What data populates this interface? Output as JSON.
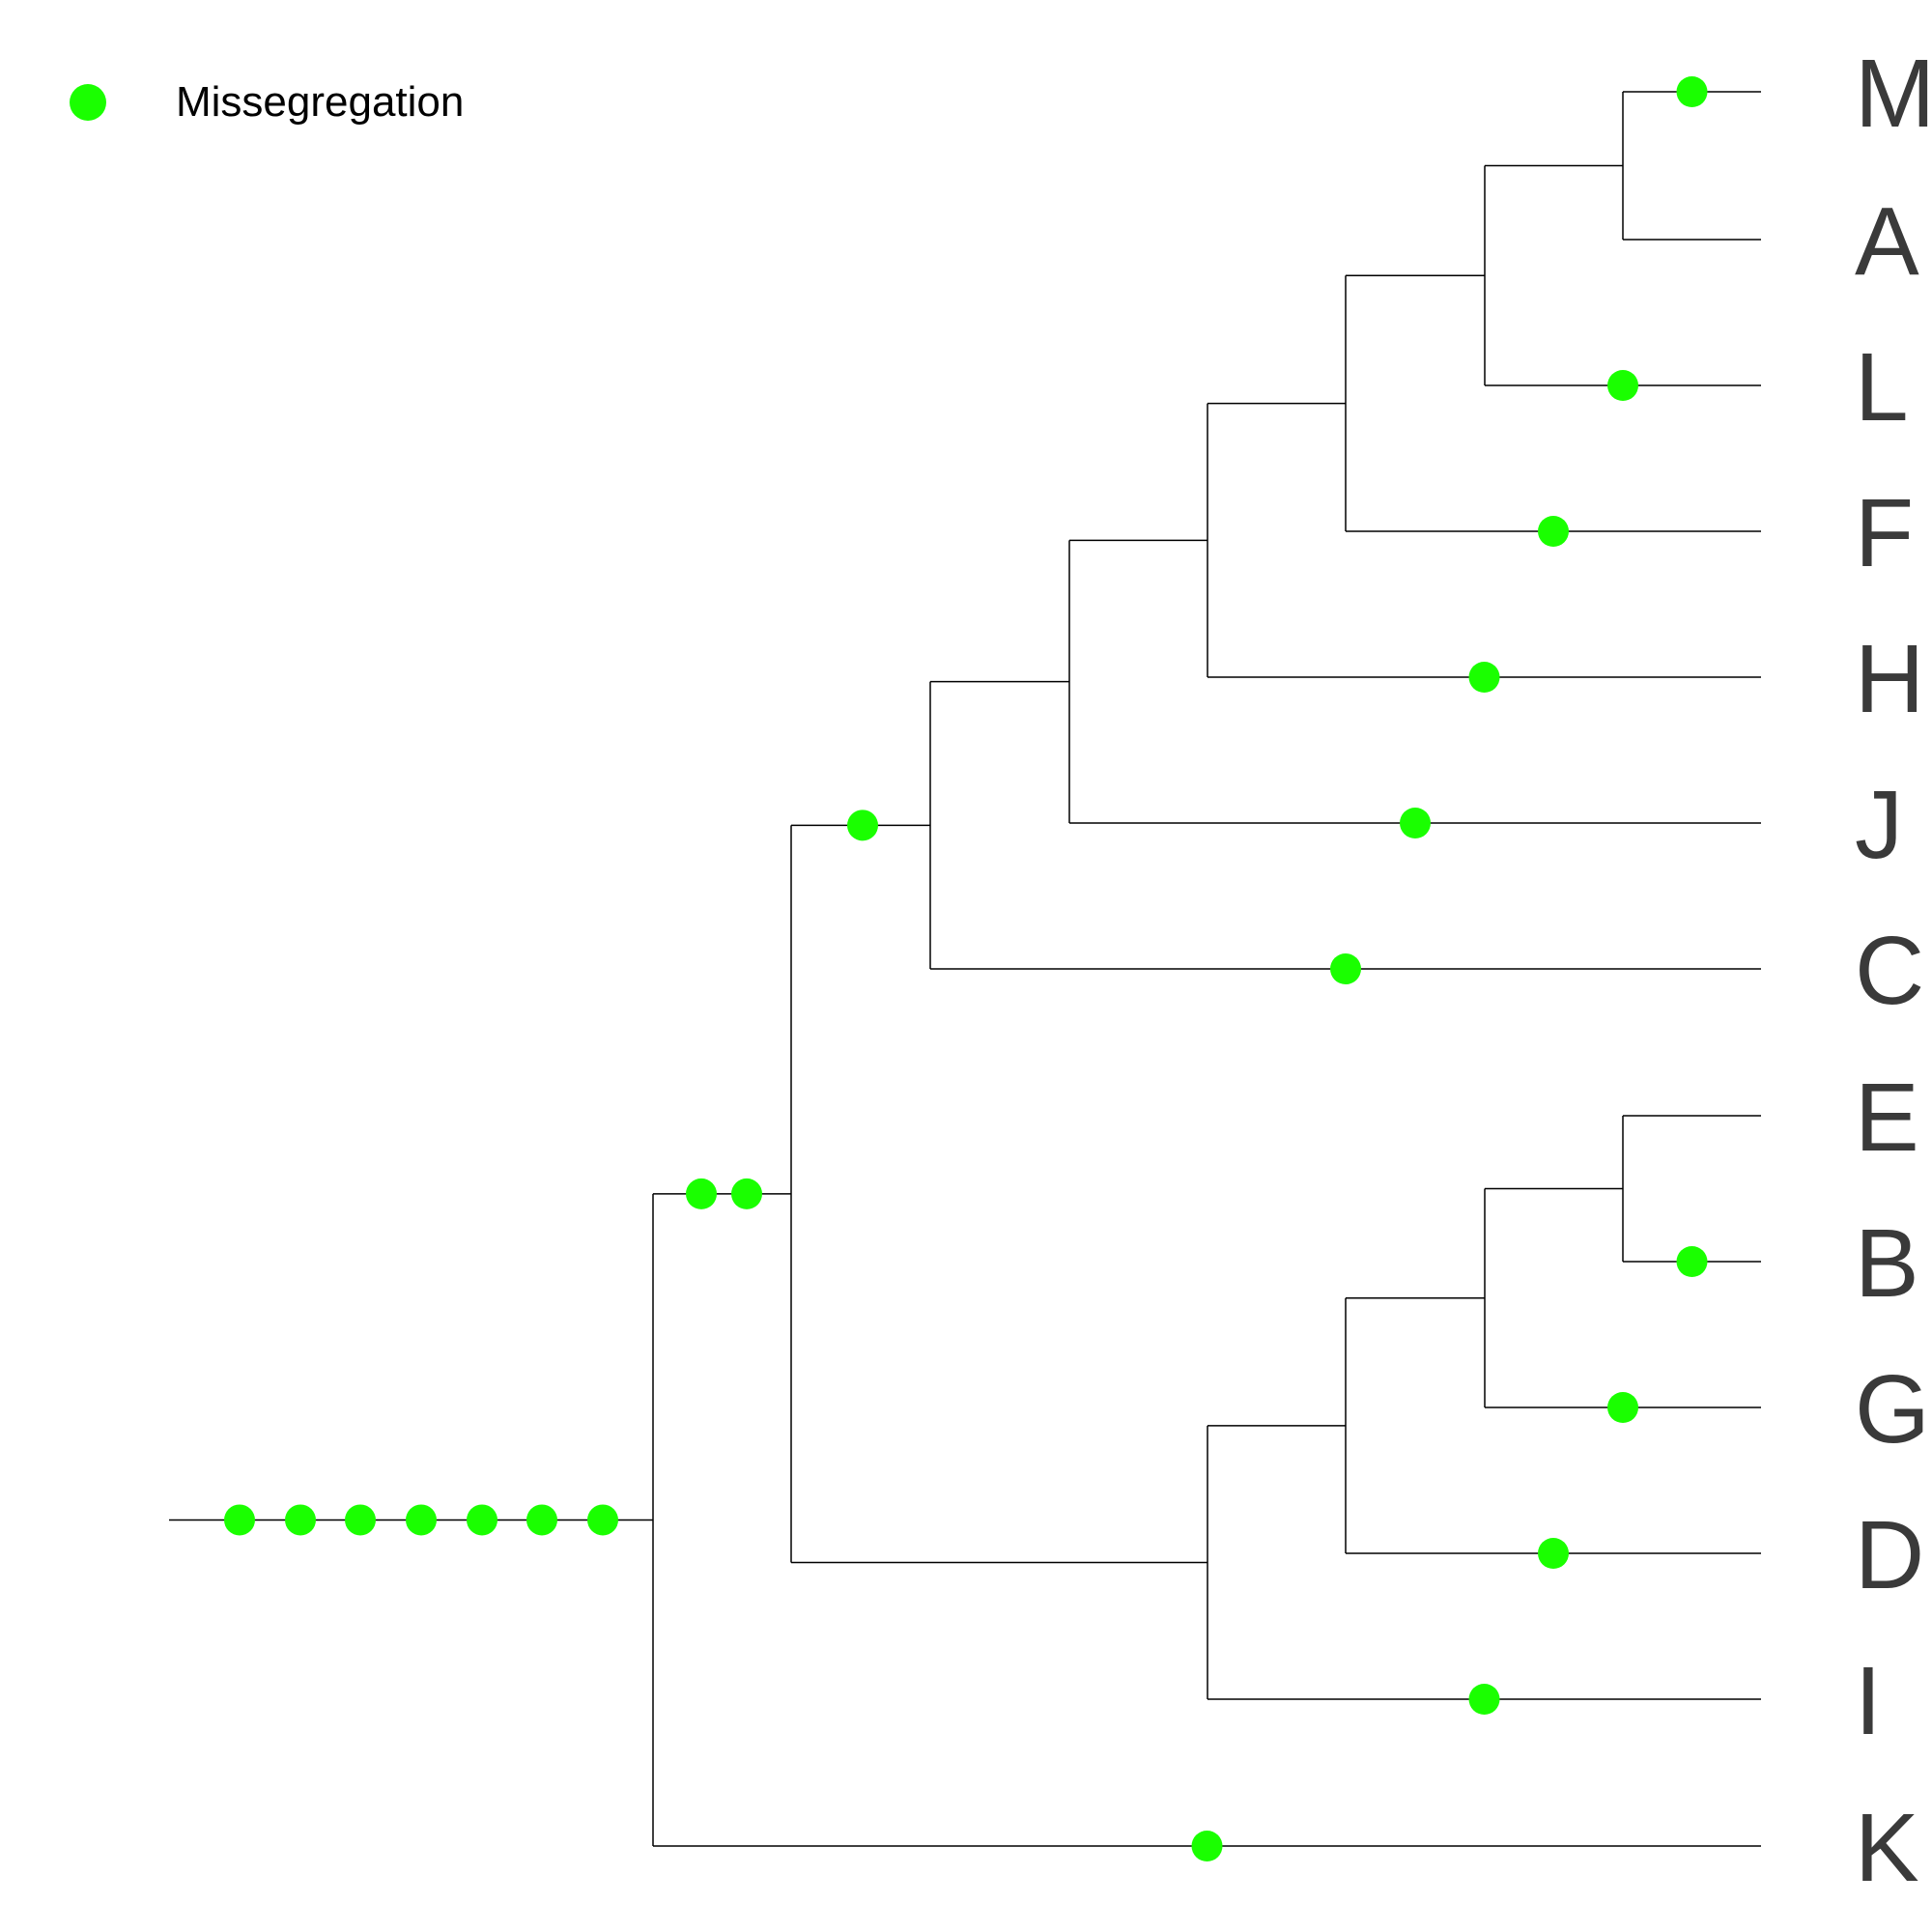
{
  "legend": {
    "label": "Missegregation",
    "marker_color": "#1aff00"
  },
  "tree": {
    "line_color": "#000000",
    "event_color": "#1aff00",
    "label_color": "#3a3a3a",
    "leaves": [
      "M",
      "A",
      "L",
      "F",
      "H",
      "J",
      "C",
      "E",
      "B",
      "G",
      "D",
      "I",
      "K"
    ],
    "branches_with_missegregation_events": {
      "root-stem": 7,
      "clade-to-E-B-G-D-I": 0,
      "clade-M-A-L-F-H-J-C": 1,
      "clade-M-A-L-F-H-J-C-E-B-G-D-I": 2,
      "M": 1,
      "A": 0,
      "L": 1,
      "F": 1,
      "H": 1,
      "J": 1,
      "C": 1,
      "E": 0,
      "B": 1,
      "G": 1,
      "D": 1,
      "I": 1,
      "K": 1
    }
  }
}
